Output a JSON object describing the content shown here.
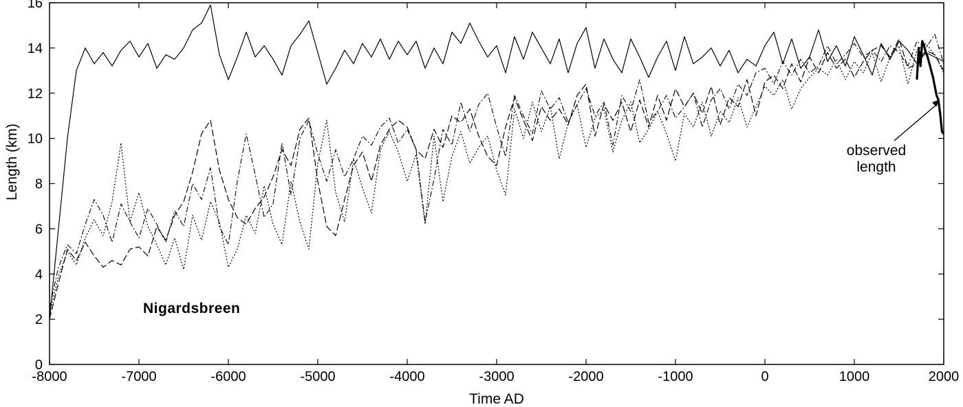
{
  "chart_data": {
    "type": "line",
    "title": "",
    "xlabel": "Time AD",
    "ylabel": "Length (km)",
    "xlim": [
      -8000,
      2000
    ],
    "ylim": [
      0,
      16
    ],
    "x_ticks": [
      -8000,
      -7000,
      -6000,
      -5000,
      -4000,
      -3000,
      -2000,
      -1000,
      0,
      1000,
      2000
    ],
    "y_ticks": [
      0,
      2,
      4,
      6,
      8,
      10,
      12,
      14,
      16
    ],
    "grid": false,
    "legend": "none",
    "panel_label": "Nigardsbreen",
    "annotation": {
      "lines": [
        "observed",
        "length"
      ],
      "arrow_target": [
        1950,
        11.7
      ]
    },
    "series": [
      {
        "style": "solid",
        "x": [
          -8000,
          -7900,
          -7800,
          -7700,
          -7600,
          -7500,
          -7400,
          -7300,
          -7200,
          -7100,
          -7000,
          -6900,
          -6800,
          -6700,
          -6600,
          -6500,
          -6400,
          -6300,
          -6200,
          -6100,
          -6000,
          -5900,
          -5800,
          -5700,
          -5600,
          -5500,
          -5400,
          -5300,
          -5200,
          -5100,
          -5000,
          -4900,
          -4800,
          -4700,
          -4600,
          -4500,
          -4400,
          -4300,
          -4200,
          -4100,
          -4000,
          -3900,
          -3800,
          -3700,
          -3600,
          -3500,
          -3400,
          -3300,
          -3200,
          -3100,
          -3000,
          -2900,
          -2800,
          -2700,
          -2600,
          -2500,
          -2400,
          -2300,
          -2200,
          -2100,
          -2000,
          -1900,
          -1800,
          -1700,
          -1600,
          -1500,
          -1400,
          -1300,
          -1200,
          -1100,
          -1000,
          -900,
          -800,
          -700,
          -600,
          -500,
          -400,
          -300,
          -200,
          -100,
          0,
          100,
          200,
          300,
          400,
          500,
          600,
          700,
          800,
          900,
          1000,
          1100,
          1200,
          1300,
          1400,
          1500,
          1600,
          1700,
          1800,
          1900,
          2000
        ],
        "y": [
          2.0,
          6.0,
          10.0,
          13.0,
          14.0,
          13.3,
          13.8,
          13.2,
          13.9,
          14.3,
          13.6,
          14.2,
          13.1,
          13.7,
          13.5,
          14.0,
          14.8,
          15.1,
          15.9,
          13.7,
          12.6,
          13.6,
          14.7,
          13.6,
          14.1,
          13.5,
          12.8,
          14.1,
          14.6,
          15.2,
          13.8,
          12.4,
          13.1,
          13.9,
          13.3,
          14.2,
          13.6,
          14.4,
          13.5,
          14.3,
          13.7,
          14.3,
          13.1,
          14.0,
          13.3,
          14.7,
          14.2,
          15.1,
          14.3,
          13.6,
          14.1,
          12.9,
          14.5,
          13.5,
          14.7,
          14.0,
          13.3,
          14.4,
          12.9,
          14.2,
          14.9,
          13.1,
          14.4,
          13.5,
          12.9,
          14.4,
          13.6,
          12.7,
          13.6,
          14.3,
          13.0,
          14.5,
          13.3,
          13.6,
          14.0,
          13.2,
          13.9,
          12.9,
          13.5,
          13.2,
          14.1,
          14.7,
          13.3,
          14.4,
          13.1,
          13.6,
          14.8,
          13.4,
          14.1,
          13.2,
          14.5,
          13.7,
          12.8,
          14.2,
          13.5,
          14.3,
          13.9,
          13.3,
          13.8,
          13.6,
          13.4
        ]
      },
      {
        "style": "long-dash",
        "x": [
          -8000,
          -7900,
          -7800,
          -7700,
          -7600,
          -7500,
          -7400,
          -7300,
          -7200,
          -7100,
          -7000,
          -6900,
          -6800,
          -6700,
          -6600,
          -6500,
          -6400,
          -6300,
          -6200,
          -6100,
          -6000,
          -5900,
          -5800,
          -5700,
          -5600,
          -5500,
          -5400,
          -5300,
          -5200,
          -5100,
          -5000,
          -4900,
          -4800,
          -4700,
          -4600,
          -4500,
          -4400,
          -4300,
          -4200,
          -4100,
          -4000,
          -3900,
          -3800,
          -3700,
          -3600,
          -3500,
          -3400,
          -3300,
          -3200,
          -3100,
          -3000,
          -2900,
          -2800,
          -2700,
          -2600,
          -2500,
          -2400,
          -2300,
          -2200,
          -2100,
          -2000,
          -1900,
          -1800,
          -1700,
          -1600,
          -1500,
          -1400,
          -1300,
          -1200,
          -1100,
          -1000,
          -900,
          -800,
          -700,
          -600,
          -500,
          -400,
          -300,
          -200,
          -100,
          0,
          100,
          200,
          300,
          400,
          500,
          600,
          700,
          800,
          900,
          1000,
          1100,
          1200,
          1300,
          1400,
          1500,
          1600,
          1700,
          1800,
          1900,
          2000
        ],
        "y": [
          2.0,
          3.6,
          5.1,
          4.6,
          5.4,
          4.8,
          4.3,
          4.6,
          4.4,
          5.1,
          5.2,
          4.8,
          6.1,
          5.5,
          6.6,
          7.2,
          8.5,
          10.2,
          10.8,
          8.6,
          7.3,
          6.5,
          6.2,
          6.9,
          7.4,
          8.3,
          9.5,
          8.8,
          10.4,
          10.9,
          8.1,
          6.1,
          5.7,
          7.3,
          8.8,
          9.4,
          8.1,
          9.7,
          10.4,
          10.8,
          10.5,
          9.5,
          9.1,
          10.4,
          9.6,
          11.0,
          10.7,
          11.3,
          10.1,
          9.2,
          8.8,
          10.5,
          11.8,
          10.8,
          9.9,
          11.4,
          10.8,
          11.3,
          10.6,
          11.9,
          12.4,
          10.1,
          11.5,
          10.8,
          11.6,
          10.3,
          11.7,
          10.5,
          11.9,
          10.8,
          12.2,
          11.4,
          12.0,
          11.1,
          12.3,
          10.6,
          11.8,
          11.4,
          12.6,
          11.0,
          12.5,
          12.8,
          12.2,
          13.3,
          12.5,
          13.6,
          12.9,
          13.8,
          13.1,
          13.5,
          12.7,
          13.4,
          13.9,
          14.1,
          13.6,
          14.4,
          13.1,
          13.3,
          13.9,
          13.7,
          13.0
        ]
      },
      {
        "style": "dash-dot",
        "x": [
          -8000,
          -7900,
          -7800,
          -7700,
          -7600,
          -7500,
          -7400,
          -7300,
          -7200,
          -7100,
          -7000,
          -6900,
          -6800,
          -6700,
          -6600,
          -6500,
          -6400,
          -6300,
          -6200,
          -6100,
          -6000,
          -5900,
          -5800,
          -5700,
          -5600,
          -5500,
          -5400,
          -5300,
          -5200,
          -5100,
          -5000,
          -4900,
          -4800,
          -4700,
          -4600,
          -4500,
          -4400,
          -4300,
          -4200,
          -4100,
          -4000,
          -3900,
          -3800,
          -3700,
          -3600,
          -3500,
          -3400,
          -3300,
          -3200,
          -3100,
          -3000,
          -2900,
          -2800,
          -2700,
          -2600,
          -2500,
          -2400,
          -2300,
          -2200,
          -2100,
          -2000,
          -1900,
          -1800,
          -1700,
          -1600,
          -1500,
          -1400,
          -1300,
          -1200,
          -1100,
          -1000,
          -900,
          -800,
          -700,
          -600,
          -500,
          -400,
          -300,
          -200,
          -100,
          0,
          100,
          200,
          300,
          400,
          500,
          600,
          700,
          800,
          900,
          1000,
          1100,
          1200,
          1300,
          1400,
          1500,
          1600,
          1700,
          1800,
          1900,
          2000
        ],
        "y": [
          2.5,
          4.3,
          5.3,
          4.9,
          6.2,
          7.3,
          6.6,
          5.4,
          7.1,
          6.3,
          5.6,
          6.9,
          6.2,
          5.4,
          6.8,
          6.1,
          8.0,
          7.3,
          8.7,
          6.1,
          5.3,
          8.1,
          10.2,
          8.4,
          6.5,
          7.1,
          9.8,
          7.5,
          10.0,
          10.8,
          9.3,
          8.1,
          9.5,
          8.3,
          9.1,
          10.1,
          9.7,
          10.5,
          10.9,
          9.8,
          10.4,
          9.5,
          6.3,
          8.2,
          10.4,
          9.7,
          11.6,
          10.3,
          11.5,
          12.0,
          10.5,
          9.2,
          11.9,
          11.0,
          10.2,
          12.1,
          11.3,
          11.8,
          10.7,
          11.5,
          12.2,
          11.0,
          11.6,
          9.7,
          11.9,
          11.2,
          12.6,
          10.7,
          11.2,
          11.9,
          10.9,
          11.4,
          12.0,
          10.5,
          11.7,
          12.2,
          11.3,
          12.4,
          11.9,
          12.9,
          13.1,
          12.4,
          13.4,
          12.8,
          13.5,
          12.9,
          13.2,
          14.1,
          13.3,
          13.7,
          14.2,
          13.6,
          13.9,
          13.4,
          14.1,
          13.8,
          13.2,
          14.3,
          14.0,
          14.6,
          13.3
        ]
      },
      {
        "style": "dotted",
        "x": [
          -8000,
          -7900,
          -7800,
          -7700,
          -7600,
          -7500,
          -7400,
          -7300,
          -7200,
          -7100,
          -7000,
          -6900,
          -6800,
          -6700,
          -6600,
          -6500,
          -6400,
          -6300,
          -6200,
          -6100,
          -6000,
          -5900,
          -5800,
          -5700,
          -5600,
          -5500,
          -5400,
          -5300,
          -5200,
          -5100,
          -5000,
          -4900,
          -4800,
          -4700,
          -4600,
          -4500,
          -4400,
          -4300,
          -4200,
          -4100,
          -4000,
          -3900,
          -3800,
          -3700,
          -3600,
          -3500,
          -3400,
          -3300,
          -3200,
          -3100,
          -3000,
          -2900,
          -2800,
          -2700,
          -2600,
          -2500,
          -2400,
          -2300,
          -2200,
          -2100,
          -2000,
          -1900,
          -1800,
          -1700,
          -1600,
          -1500,
          -1400,
          -1300,
          -1200,
          -1100,
          -1000,
          -900,
          -800,
          -700,
          -600,
          -500,
          -400,
          -300,
          -200,
          -100,
          0,
          100,
          200,
          300,
          400,
          500,
          600,
          700,
          800,
          900,
          1000,
          1100,
          1200,
          1300,
          1400,
          1500,
          1600,
          1700,
          1800,
          1900,
          2000
        ],
        "y": [
          2.2,
          3.9,
          5.0,
          4.4,
          5.6,
          6.4,
          5.7,
          7.2,
          9.8,
          6.3,
          7.6,
          6.1,
          5.3,
          4.4,
          5.6,
          4.2,
          6.6,
          5.5,
          7.2,
          6.3,
          4.3,
          5.1,
          6.6,
          5.8,
          7.9,
          6.2,
          5.3,
          8.1,
          6.3,
          5.1,
          8.9,
          10.8,
          7.6,
          6.3,
          9.1,
          7.8,
          6.7,
          9.5,
          10.3,
          9.4,
          8.1,
          9.3,
          6.2,
          10.1,
          7.2,
          9.2,
          10.3,
          8.9,
          9.6,
          10.1,
          8.6,
          7.5,
          11.3,
          10.0,
          11.6,
          10.3,
          11.4,
          9.1,
          10.7,
          11.5,
          9.6,
          10.9,
          11.3,
          9.4,
          10.8,
          11.6,
          9.8,
          10.4,
          11.2,
          10.2,
          9.0,
          11.1,
          10.5,
          11.6,
          10.1,
          11.2,
          10.7,
          11.8,
          10.5,
          11.4,
          12.3,
          11.9,
          12.6,
          11.3,
          12.2,
          12.7,
          13.1,
          12.8,
          13.5,
          12.6,
          13.4,
          12.9,
          13.8,
          12.5,
          13.6,
          14.1,
          12.4,
          13.9,
          14.2,
          13.7,
          12.9
        ]
      },
      {
        "style": "bold-solid",
        "name": "observed length",
        "x": [
          1700,
          1720,
          1740,
          1760,
          1780,
          1800,
          1820,
          1840,
          1860,
          1880,
          1900,
          1920,
          1940,
          1960,
          1980,
          2000
        ],
        "y": [
          12.6,
          14.0,
          13.2,
          14.3,
          14.1,
          13.8,
          13.6,
          13.3,
          13.0,
          12.7,
          12.3,
          11.9,
          11.7,
          11.1,
          10.3,
          10.2
        ]
      }
    ]
  }
}
